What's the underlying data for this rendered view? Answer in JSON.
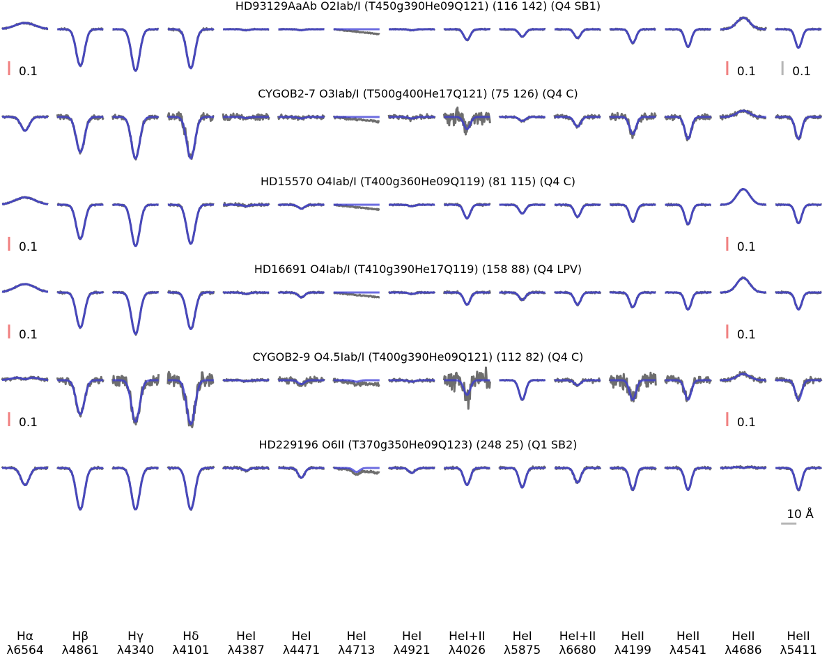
{
  "chart_data": {
    "type": "line",
    "series_colors": {
      "observed": "#6e6e6e",
      "model": "#3b3bd6",
      "model_light": "#8c8cf5"
    },
    "scale_bar_colors": {
      "flux": "#f08080",
      "flux_alt": "#b5b5b5",
      "wavelength": "#b5b5b5"
    },
    "columns": [
      {
        "id": "Ha",
        "line1": "Hα",
        "line2": "λ6564"
      },
      {
        "id": "Hb",
        "line1": "Hβ",
        "line2": "λ4861"
      },
      {
        "id": "Hg",
        "line1": "Hγ",
        "line2": "λ4340"
      },
      {
        "id": "Hd",
        "line1": "Hδ",
        "line2": "λ4101"
      },
      {
        "id": "HeI4387",
        "line1": "HeI",
        "line2": "λ4387"
      },
      {
        "id": "HeI4471",
        "line1": "HeI",
        "line2": "λ4471"
      },
      {
        "id": "HeI4713",
        "line1": "HeI",
        "line2": "λ4713"
      },
      {
        "id": "HeI4921",
        "line1": "HeI",
        "line2": "λ4921"
      },
      {
        "id": "HeI4026",
        "line1": "HeI+II",
        "line2": "λ4026"
      },
      {
        "id": "HeI5875",
        "line1": "HeI",
        "line2": "λ5875"
      },
      {
        "id": "HeI6680",
        "line1": "HeI+II",
        "line2": "λ6680"
      },
      {
        "id": "HeII4199",
        "line1": "HeII",
        "line2": "λ4199"
      },
      {
        "id": "HeII4541",
        "line1": "HeII",
        "line2": "λ4541"
      },
      {
        "id": "HeII4686",
        "line1": "HeII",
        "line2": "λ4686"
      },
      {
        "id": "HeII5411",
        "line1": "HeII",
        "line2": "λ5411"
      }
    ],
    "stars": [
      {
        "title": "HD93129AaAb O2Iab/I (T450g390He09Q121) (116 142) (Q4 SB1)",
        "noise": [
          0.006,
          0.008,
          0.006,
          0.012,
          0.004,
          0.004,
          0.004,
          0.004,
          0.006,
          0.006,
          0.006,
          0.006,
          0.006,
          0.012,
          0.006
        ],
        "depth": [
          0,
          0.75,
          0.85,
          0.8,
          0.02,
          0.02,
          0,
          0.02,
          0.22,
          0.15,
          0.18,
          0.28,
          0.36,
          0,
          0.38
        ],
        "emission": [
          0.3,
          0,
          0,
          0,
          0,
          0,
          0,
          0,
          0,
          0,
          0,
          0,
          0,
          0.55,
          0
        ],
        "scale_bars": [
          {
            "col": 0,
            "label": "0.1"
          },
          {
            "col": 13,
            "label": "0.1"
          },
          {
            "col": 14,
            "label": "0.1",
            "alt": true
          }
        ]
      },
      {
        "title": "CYGOB2-7 O3Iab/I (T500g400He17Q121) (75 126) (Q4 C)",
        "noise": [
          0.01,
          0.02,
          0.02,
          0.05,
          0.03,
          0.02,
          0.01,
          0.02,
          0.08,
          0.01,
          0.02,
          0.04,
          0.03,
          0.02,
          0.02
        ],
        "depth": [
          0.28,
          0.72,
          0.85,
          0.85,
          0.02,
          0.03,
          0,
          0.03,
          0.25,
          0.08,
          0.2,
          0.35,
          0.45,
          0,
          0.45
        ],
        "emission": [
          0,
          0,
          0,
          0,
          0,
          0,
          0,
          0,
          0,
          0,
          0,
          0,
          0,
          0.3,
          0
        ],
        "scale_bars": []
      },
      {
        "title": "HD15570 O4Iab/I (T400g360He09Q119) (81 115) (Q4 C)",
        "noise": [
          0.006,
          0.008,
          0.008,
          0.012,
          0.015,
          0.008,
          0.006,
          0.006,
          0.01,
          0.006,
          0.008,
          0.008,
          0.008,
          0.004,
          0.006
        ],
        "depth": [
          0,
          0.7,
          0.85,
          0.8,
          0.03,
          0.08,
          0,
          0.03,
          0.28,
          0.18,
          0.25,
          0.35,
          0.4,
          0,
          0.38
        ],
        "emission": [
          0.35,
          0,
          0,
          0,
          0,
          0,
          0,
          0,
          0,
          0,
          0,
          0,
          0,
          0.75,
          0
        ],
        "scale_bars": [
          {
            "col": 0,
            "label": "0.1"
          },
          {
            "col": 13,
            "label": "0.1"
          }
        ]
      },
      {
        "title": "HD16691 O4Iab/I (T410g390He17Q119) (158 88) (Q4 LPV)",
        "noise": [
          0.006,
          0.01,
          0.008,
          0.015,
          0.008,
          0.008,
          0.006,
          0.008,
          0.012,
          0.01,
          0.008,
          0.008,
          0.008,
          0.006,
          0.008
        ],
        "depth": [
          0,
          0.72,
          0.85,
          0.75,
          0.03,
          0.1,
          0,
          0.03,
          0.25,
          0.15,
          0.25,
          0.3,
          0.35,
          0,
          0.35
        ],
        "emission": [
          0.4,
          0,
          0,
          0,
          0,
          0,
          0,
          0,
          0,
          0,
          0,
          0,
          0,
          0.7,
          0
        ],
        "scale_bars": [
          {
            "col": 0,
            "label": "0.1"
          },
          {
            "col": 13,
            "label": "0.1"
          }
        ]
      },
      {
        "title": "CYGOB2-9 O4.5Iab/I (T400g390He09Q121) (112 82) (Q4 C)",
        "noise": [
          0.015,
          0.03,
          0.06,
          0.08,
          0.01,
          0.03,
          0.02,
          0.015,
          0.12,
          0.005,
          0.02,
          0.08,
          0.04,
          0.02,
          0.03
        ],
        "depth": [
          0.15,
          0.7,
          0.85,
          0.9,
          0.02,
          0.08,
          0.03,
          0.03,
          0.3,
          0.4,
          0.1,
          0.4,
          0.4,
          0,
          0.4
        ],
        "emission": [
          0.2,
          0,
          0,
          0,
          0,
          0,
          0,
          0,
          0,
          0,
          0,
          0,
          0,
          0.3,
          0
        ],
        "scale_bars": [
          {
            "col": 0,
            "label": "0.1"
          },
          {
            "col": 13,
            "label": "0.1"
          }
        ]
      },
      {
        "title": "HD229196 O6II (T370g350He09Q123) (248 25) (Q1 SB2)",
        "noise": [
          0.01,
          0.01,
          0.01,
          0.012,
          0.012,
          0.012,
          0.01,
          0.01,
          0.012,
          0.012,
          0.012,
          0.012,
          0.012,
          0.01,
          0.01
        ],
        "depth": [
          0.35,
          0.85,
          0.85,
          0.85,
          0.05,
          0.2,
          0.08,
          0.1,
          0.35,
          0.4,
          0.3,
          0.45,
          0.45,
          0.1,
          0.45
        ],
        "emission": [
          0,
          0,
          0,
          0,
          0,
          0,
          0,
          0,
          0,
          0,
          0,
          0,
          0,
          0.1,
          0
        ],
        "scale_bars": [],
        "wavelength_bar": {
          "col": 14,
          "label": "10 Å"
        }
      }
    ]
  }
}
